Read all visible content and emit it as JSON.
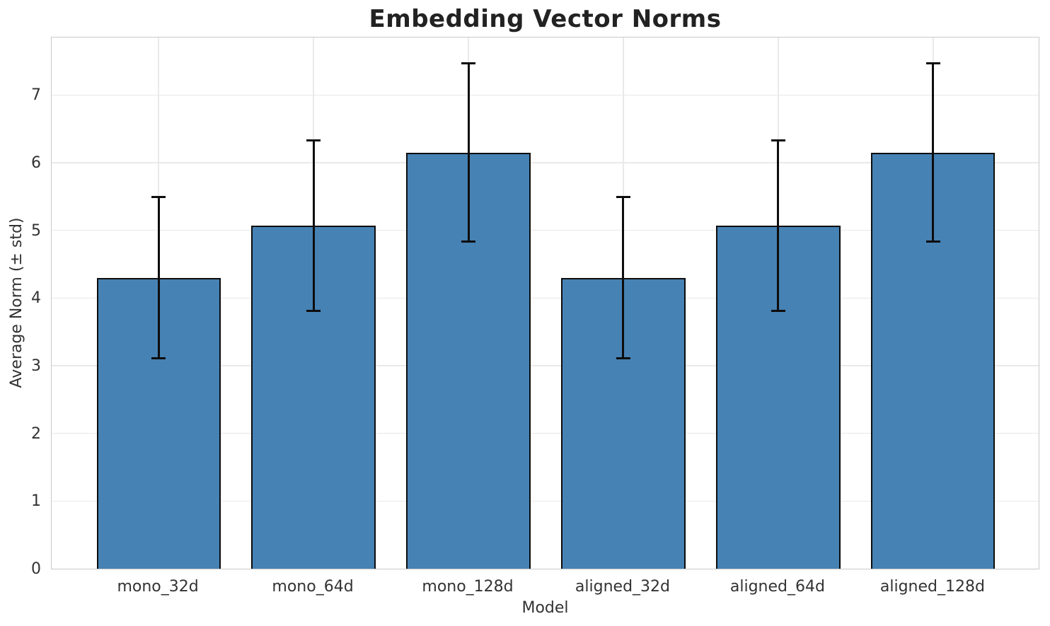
{
  "chart_data": {
    "type": "bar",
    "title": "Embedding Vector Norms",
    "xlabel": "Model",
    "ylabel": "Average Norm (± std)",
    "categories": [
      "mono_32d",
      "mono_64d",
      "mono_128d",
      "aligned_32d",
      "aligned_64d",
      "aligned_128d"
    ],
    "values": [
      4.3,
      5.07,
      6.15,
      4.3,
      5.07,
      6.15
    ],
    "errors": [
      1.19,
      1.26,
      1.32,
      1.19,
      1.26,
      1.32
    ],
    "ylim": [
      0,
      7.87
    ],
    "yticks": [
      0,
      1,
      2,
      3,
      4,
      5,
      6,
      7
    ],
    "grid": "both",
    "legend": "none",
    "colors": {
      "bar_fill": "#4682B4",
      "bar_edge": "#0d0d0d",
      "error_bar": "#0d0d0d",
      "grid_line": "#e9e9e9",
      "spine": "#c9c9c9",
      "tick_text": "#333333",
      "title_text": "#222222"
    }
  }
}
